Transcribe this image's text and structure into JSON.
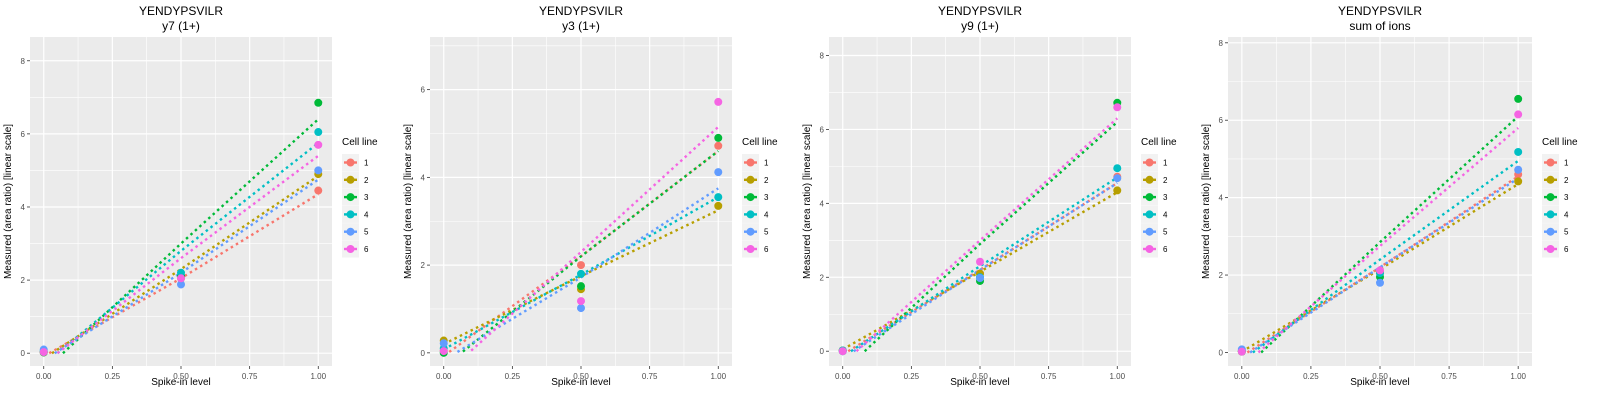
{
  "chart_data": [
    {
      "type": "scatter",
      "title": "YENDYPSVILR",
      "subtitle": "y7 (1+)",
      "xlabel": "Spike-in level",
      "ylabel": "Measured (area ratio) [linear scale]",
      "xlim": [
        -0.05,
        1.05
      ],
      "ylim": [
        -0.35,
        8.65
      ],
      "xticks": [
        "0.00",
        "0.25",
        "0.50",
        "0.75",
        "1.00"
      ],
      "yticks": [
        "0",
        "2",
        "4",
        "6",
        "8"
      ],
      "legend_title": "Cell line",
      "legend_position": "right",
      "series": [
        {
          "name": "1",
          "color": "#F8766D",
          "points": [
            [
              0,
              0.02
            ],
            [
              0.5,
              2.1
            ],
            [
              1,
              4.45
            ]
          ],
          "fit": [
            [
              0.02,
              0.0
            ],
            [
              0.5,
              2.05
            ],
            [
              1,
              4.35
            ]
          ]
        },
        {
          "name": "2",
          "color": "#B79F00",
          "points": [
            [
              0,
              0.03
            ],
            [
              0.5,
              2.05
            ],
            [
              1,
              4.9
            ]
          ],
          "fit": [
            [
              0.03,
              0.0
            ],
            [
              0.5,
              2.3
            ],
            [
              1,
              4.85
            ]
          ]
        },
        {
          "name": "3",
          "color": "#00BA38",
          "points": [
            [
              0,
              0.02
            ],
            [
              0.5,
              2.12
            ],
            [
              1,
              6.85
            ]
          ],
          "fit": [
            [
              0.07,
              0.0
            ],
            [
              0.5,
              3.0
            ],
            [
              1,
              6.4
            ]
          ]
        },
        {
          "name": "4",
          "color": "#00BFC4",
          "points": [
            [
              0,
              0.05
            ],
            [
              0.5,
              2.2
            ],
            [
              1,
              6.05
            ]
          ],
          "fit": [
            [
              0.05,
              0.0
            ],
            [
              0.5,
              2.8
            ],
            [
              1,
              5.75
            ]
          ]
        },
        {
          "name": "5",
          "color": "#619CFF",
          "points": [
            [
              0,
              0.1
            ],
            [
              0.5,
              1.88
            ],
            [
              1,
              5.0
            ]
          ],
          "fit": [
            [
              0.04,
              0.0
            ],
            [
              0.5,
              2.2
            ],
            [
              1,
              4.75
            ]
          ]
        },
        {
          "name": "6",
          "color": "#F564E3",
          "points": [
            [
              0,
              0.03
            ],
            [
              0.5,
              2.05
            ],
            [
              1,
              5.7
            ]
          ],
          "fit": [
            [
              0.05,
              0.0
            ],
            [
              0.5,
              2.6
            ],
            [
              1,
              5.4
            ]
          ]
        }
      ]
    },
    {
      "type": "scatter",
      "title": "YENDYPSVILR",
      "subtitle": "y3 (1+)",
      "xlabel": "Spike-in level",
      "ylabel": "Measured (area ratio) [linear scale]",
      "xlim": [
        -0.05,
        1.05
      ],
      "ylim": [
        -0.3,
        7.2
      ],
      "xticks": [
        "0.00",
        "0.25",
        "0.50",
        "0.75",
        "1.00"
      ],
      "yticks": [
        "0",
        "2",
        "4",
        "6"
      ],
      "legend_title": "Cell line",
      "legend_position": "right",
      "series": [
        {
          "name": "1",
          "color": "#F8766D",
          "points": [
            [
              0,
              0.05
            ],
            [
              0.5,
              2.0
            ],
            [
              1,
              4.72
            ]
          ],
          "fit": [
            [
              0.02,
              0.02
            ],
            [
              0.5,
              2.2
            ],
            [
              1,
              4.6
            ]
          ]
        },
        {
          "name": "2",
          "color": "#B79F00",
          "points": [
            [
              0,
              0.28
            ],
            [
              0.5,
              1.45
            ],
            [
              1,
              3.35
            ]
          ],
          "fit": [
            [
              0.0,
              0.2
            ],
            [
              0.5,
              1.75
            ],
            [
              1,
              3.25
            ]
          ]
        },
        {
          "name": "3",
          "color": "#00BA38",
          "points": [
            [
              0,
              0.0
            ],
            [
              0.5,
              1.52
            ],
            [
              1,
              4.9
            ]
          ],
          "fit": [
            [
              0.07,
              0.03
            ],
            [
              0.5,
              2.2
            ],
            [
              1,
              4.6
            ]
          ]
        },
        {
          "name": "4",
          "color": "#00BFC4",
          "points": [
            [
              0,
              0.1
            ],
            [
              0.5,
              1.8
            ],
            [
              1,
              3.55
            ]
          ],
          "fit": [
            [
              0.0,
              0.08
            ],
            [
              0.5,
              1.78
            ],
            [
              1,
              3.55
            ]
          ]
        },
        {
          "name": "5",
          "color": "#619CFF",
          "points": [
            [
              0,
              0.22
            ],
            [
              0.5,
              1.02
            ],
            [
              1,
              4.12
            ]
          ],
          "fit": [
            [
              0.05,
              0.02
            ],
            [
              0.5,
              1.72
            ],
            [
              1,
              3.75
            ]
          ]
        },
        {
          "name": "6",
          "color": "#F564E3",
          "points": [
            [
              0,
              0.04
            ],
            [
              0.5,
              1.18
            ],
            [
              1,
              5.72
            ]
          ],
          "fit": [
            [
              0.1,
              0.05
            ],
            [
              0.5,
              2.3
            ],
            [
              1,
              5.15
            ]
          ]
        }
      ]
    },
    {
      "type": "scatter",
      "title": "YENDYPSVILR",
      "subtitle": "y9 (1+)",
      "xlabel": "Spike-in level",
      "ylabel": "Measured (area ratio) [linear scale]",
      "xlim": [
        -0.05,
        1.05
      ],
      "ylim": [
        -0.4,
        8.5
      ],
      "xticks": [
        "0.00",
        "0.25",
        "0.50",
        "0.75",
        "1.00"
      ],
      "yticks": [
        "0",
        "2",
        "4",
        "6",
        "8"
      ],
      "legend_title": "Cell line",
      "legend_position": "right",
      "series": [
        {
          "name": "1",
          "color": "#F8766D",
          "points": [
            [
              0,
              0.02
            ],
            [
              0.5,
              2.1
            ],
            [
              1,
              4.72
            ]
          ],
          "fit": [
            [
              0.02,
              0.0
            ],
            [
              0.5,
              2.2
            ],
            [
              1,
              4.55
            ]
          ]
        },
        {
          "name": "2",
          "color": "#B79F00",
          "points": [
            [
              0,
              0.02
            ],
            [
              0.5,
              2.1
            ],
            [
              1,
              4.35
            ]
          ],
          "fit": [
            [
              0.0,
              0.05
            ],
            [
              0.5,
              2.15
            ],
            [
              1,
              4.3
            ]
          ]
        },
        {
          "name": "3",
          "color": "#00BA38",
          "points": [
            [
              0,
              0.0
            ],
            [
              0.5,
              1.9
            ],
            [
              1,
              6.72
            ]
          ],
          "fit": [
            [
              0.08,
              0.0
            ],
            [
              0.5,
              2.9
            ],
            [
              1,
              6.2
            ]
          ]
        },
        {
          "name": "4",
          "color": "#00BFC4",
          "points": [
            [
              0,
              0.02
            ],
            [
              0.5,
              2.0
            ],
            [
              1,
              4.95
            ]
          ],
          "fit": [
            [
              0.03,
              0.0
            ],
            [
              0.5,
              2.3
            ],
            [
              1,
              4.7
            ]
          ]
        },
        {
          "name": "5",
          "color": "#619CFF",
          "points": [
            [
              0,
              0.0
            ],
            [
              0.5,
              1.98
            ],
            [
              1,
              4.68
            ]
          ],
          "fit": [
            [
              0.04,
              0.0
            ],
            [
              0.5,
              2.2
            ],
            [
              1,
              4.55
            ]
          ]
        },
        {
          "name": "6",
          "color": "#F564E3",
          "points": [
            [
              0,
              0.0
            ],
            [
              0.5,
              2.42
            ],
            [
              1,
              6.6
            ]
          ],
          "fit": [
            [
              0.05,
              0.0
            ],
            [
              0.5,
              3.0
            ],
            [
              1,
              6.3
            ]
          ]
        }
      ]
    },
    {
      "type": "scatter",
      "title": "YENDYPSVILR",
      "subtitle": "sum of ions",
      "xlabel": "Spike-in level",
      "ylabel": "Measured (area ratio) [linear scale]",
      "xlim": [
        -0.05,
        1.05
      ],
      "ylim": [
        -0.35,
        8.15
      ],
      "xticks": [
        "0.00",
        "0.25",
        "0.50",
        "0.75",
        "1.00"
      ],
      "yticks": [
        "0",
        "2",
        "4",
        "6",
        "8"
      ],
      "legend_title": "Cell line",
      "legend_position": "right",
      "series": [
        {
          "name": "1",
          "color": "#F8766D",
          "points": [
            [
              0,
              0.02
            ],
            [
              0.5,
              2.1
            ],
            [
              1,
              4.6
            ]
          ],
          "fit": [
            [
              0.02,
              0.0
            ],
            [
              0.5,
              2.2
            ],
            [
              1,
              4.55
            ]
          ]
        },
        {
          "name": "2",
          "color": "#B79F00",
          "points": [
            [
              0,
              0.03
            ],
            [
              0.5,
              2.05
            ],
            [
              1,
              4.42
            ]
          ],
          "fit": [
            [
              0.0,
              0.02
            ],
            [
              0.5,
              2.15
            ],
            [
              1,
              4.35
            ]
          ]
        },
        {
          "name": "3",
          "color": "#00BA38",
          "points": [
            [
              0,
              0.02
            ],
            [
              0.5,
              1.95
            ],
            [
              1,
              6.55
            ]
          ],
          "fit": [
            [
              0.07,
              0.0
            ],
            [
              0.5,
              2.85
            ],
            [
              1,
              6.1
            ]
          ]
        },
        {
          "name": "4",
          "color": "#00BFC4",
          "points": [
            [
              0,
              0.04
            ],
            [
              0.5,
              2.05
            ],
            [
              1,
              5.18
            ]
          ],
          "fit": [
            [
              0.04,
              0.0
            ],
            [
              0.5,
              2.4
            ],
            [
              1,
              4.95
            ]
          ]
        },
        {
          "name": "5",
          "color": "#619CFF",
          "points": [
            [
              0,
              0.08
            ],
            [
              0.5,
              1.8
            ],
            [
              1,
              4.72
            ]
          ],
          "fit": [
            [
              0.03,
              0.0
            ],
            [
              0.5,
              2.2
            ],
            [
              1,
              4.5
            ]
          ]
        },
        {
          "name": "6",
          "color": "#F564E3",
          "points": [
            [
              0,
              0.02
            ],
            [
              0.5,
              2.12
            ],
            [
              1,
              6.15
            ]
          ],
          "fit": [
            [
              0.06,
              0.0
            ],
            [
              0.5,
              2.75
            ],
            [
              1,
              5.8
            ]
          ]
        }
      ]
    }
  ]
}
